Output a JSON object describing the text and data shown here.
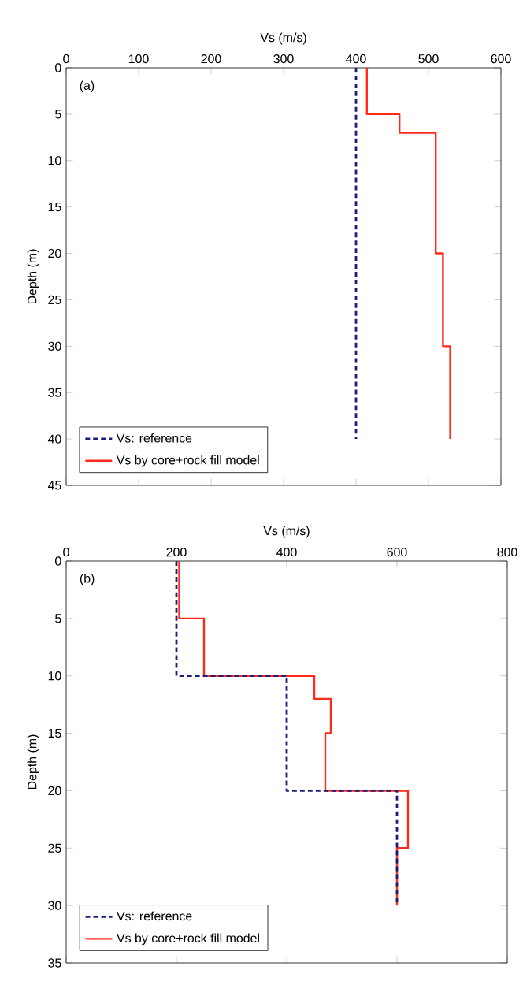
{
  "chart_data": [
    {
      "type": "line",
      "xlabel": "Vs (m/s)",
      "ylabel": "Depth (m)",
      "annotations": [
        "(a)"
      ],
      "xlim": [
        0,
        600
      ],
      "xticks": [
        0,
        100,
        200,
        300,
        400,
        500,
        600
      ],
      "ylim": [
        45,
        0
      ],
      "yticks": [
        0,
        5,
        10,
        15,
        20,
        25,
        30,
        35,
        40,
        45
      ],
      "legend": "bottom left",
      "series": [
        {
          "name": "Vs: reference",
          "color": "#1c1c78",
          "line_style": "dashed",
          "x": [
            400,
            400
          ],
          "values": [
            0,
            40
          ]
        },
        {
          "name": "Vs by core+rock fill model",
          "color": "#ff2a1a",
          "line_style": "solid",
          "x": [
            415,
            415,
            460,
            460,
            510,
            510,
            520,
            520,
            530,
            530
          ],
          "values": [
            0,
            5,
            5,
            7,
            7,
            20,
            20,
            30,
            30,
            40
          ]
        }
      ]
    },
    {
      "type": "line",
      "xlabel": "Vs (m/s)",
      "ylabel": "Depth (m)",
      "annotations": [
        "(b)"
      ],
      "xlim": [
        0,
        800
      ],
      "xticks": [
        0,
        200,
        400,
        600,
        800
      ],
      "ylim": [
        35,
        0
      ],
      "yticks": [
        0,
        5,
        10,
        15,
        20,
        25,
        30,
        35
      ],
      "legend": "bottom left",
      "series": [
        {
          "name": "Vs: reference",
          "color": "#1c1c78",
          "line_style": "dashed",
          "x": [
            200,
            200,
            400,
            400,
            600,
            600
          ],
          "values": [
            0,
            10,
            10,
            20,
            20,
            30
          ]
        },
        {
          "name": "Vs by core+rock fill model",
          "color": "#ff2a1a",
          "line_style": "solid",
          "x": [
            205,
            205,
            250,
            250,
            450,
            450,
            480,
            480,
            470,
            470,
            620,
            620,
            600,
            600
          ],
          "values": [
            0,
            5,
            5,
            10,
            10,
            12,
            12,
            15,
            15,
            20,
            20,
            25,
            25,
            30
          ]
        }
      ]
    }
  ]
}
